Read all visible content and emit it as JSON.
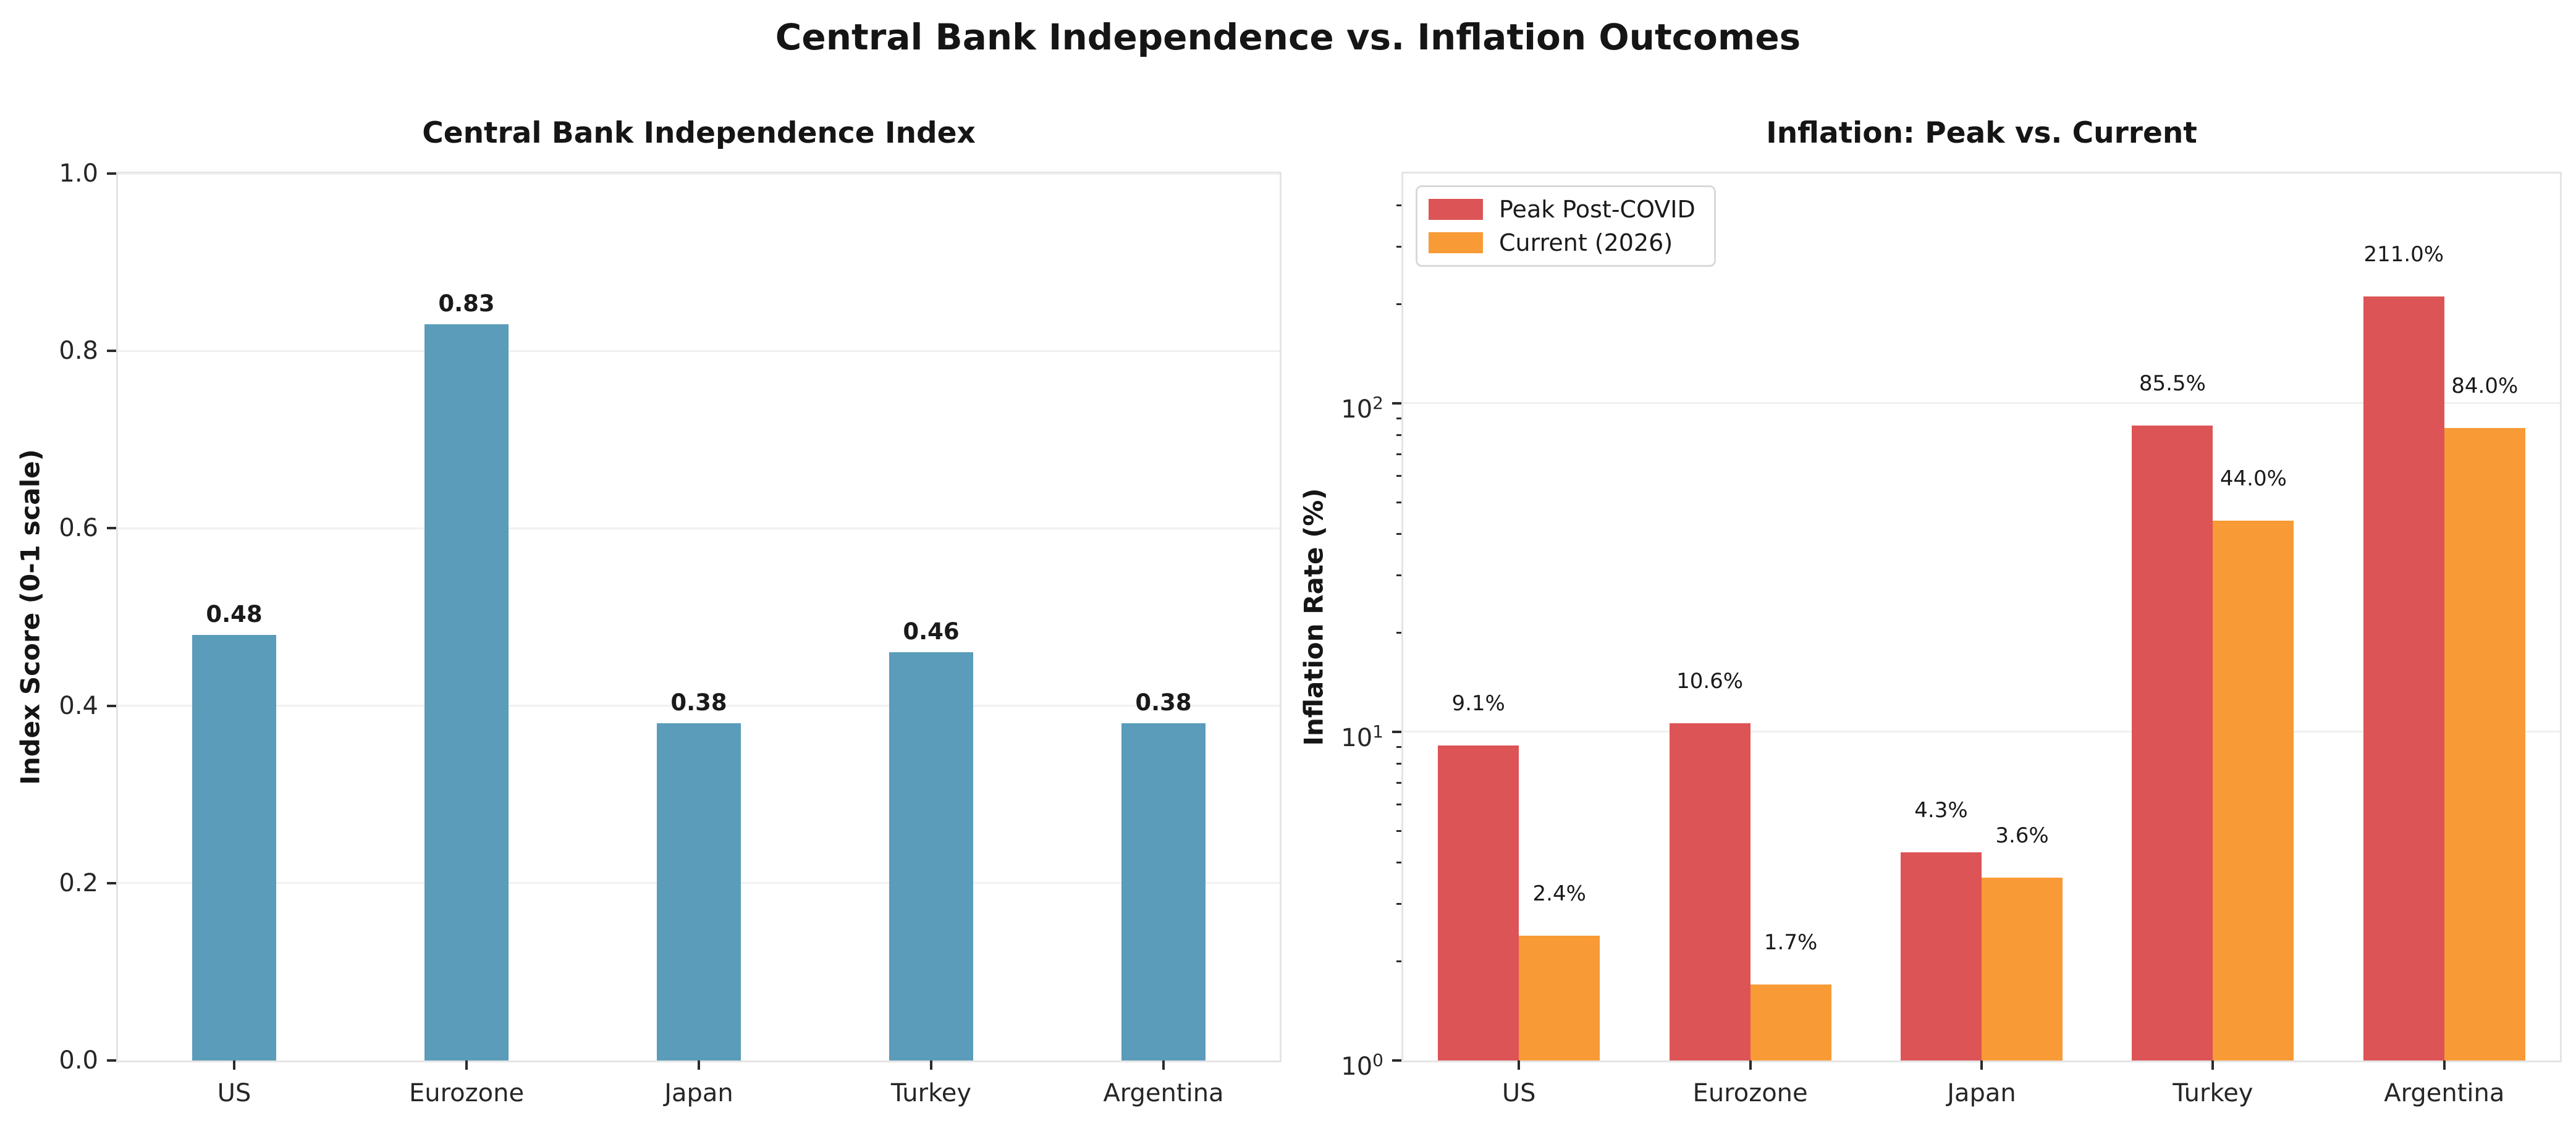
{
  "figure": {
    "title": "Central Bank Independence vs. Inflation Outcomes"
  },
  "chart_data": [
    {
      "type": "bar",
      "title": "Central Bank Independence Index",
      "xlabel": "",
      "ylabel": "Index Score (0-1 scale)",
      "categories": [
        "US",
        "Eurozone",
        "Japan",
        "Turkey",
        "Argentina"
      ],
      "values": [
        0.48,
        0.83,
        0.38,
        0.46,
        0.38
      ],
      "value_labels": [
        "0.48",
        "0.83",
        "0.38",
        "0.46",
        "0.38"
      ],
      "bar_color": "#5A9CBA",
      "yscale": "linear",
      "ylim": [
        0,
        1.0
      ],
      "yticks": [
        0.0,
        0.2,
        0.4,
        0.6,
        0.8,
        1.0
      ],
      "ytick_labels": [
        "0.0",
        "0.2",
        "0.4",
        "0.6",
        "0.8",
        "1.0"
      ],
      "grid": true,
      "legend": null
    },
    {
      "type": "bar",
      "title": "Inflation: Peak vs. Current",
      "xlabel": "",
      "ylabel": "Inflation Rate (%)",
      "categories": [
        "US",
        "Eurozone",
        "Japan",
        "Turkey",
        "Argentina"
      ],
      "series": [
        {
          "name": "Peak Post-COVID",
          "color": "#DC5456",
          "values": [
            9.1,
            10.6,
            4.3,
            85.5,
            211.0
          ],
          "value_labels": [
            "9.1%",
            "10.6%",
            "4.3%",
            "85.5%",
            "211.0%"
          ]
        },
        {
          "name": "Current (2026)",
          "color": "#F89A35",
          "values": [
            2.4,
            1.7,
            3.6,
            44.0,
            84.0
          ],
          "value_labels": [
            "2.4%",
            "1.7%",
            "3.6%",
            "44.0%",
            "84.0%"
          ]
        }
      ],
      "yscale": "log",
      "ylim": [
        1,
        500
      ],
      "ytick_exponents": [
        0,
        1,
        2
      ],
      "grid": true,
      "legend": {
        "position": "upper left",
        "entries": [
          "Peak Post-COVID",
          "Current (2026)"
        ]
      }
    }
  ]
}
